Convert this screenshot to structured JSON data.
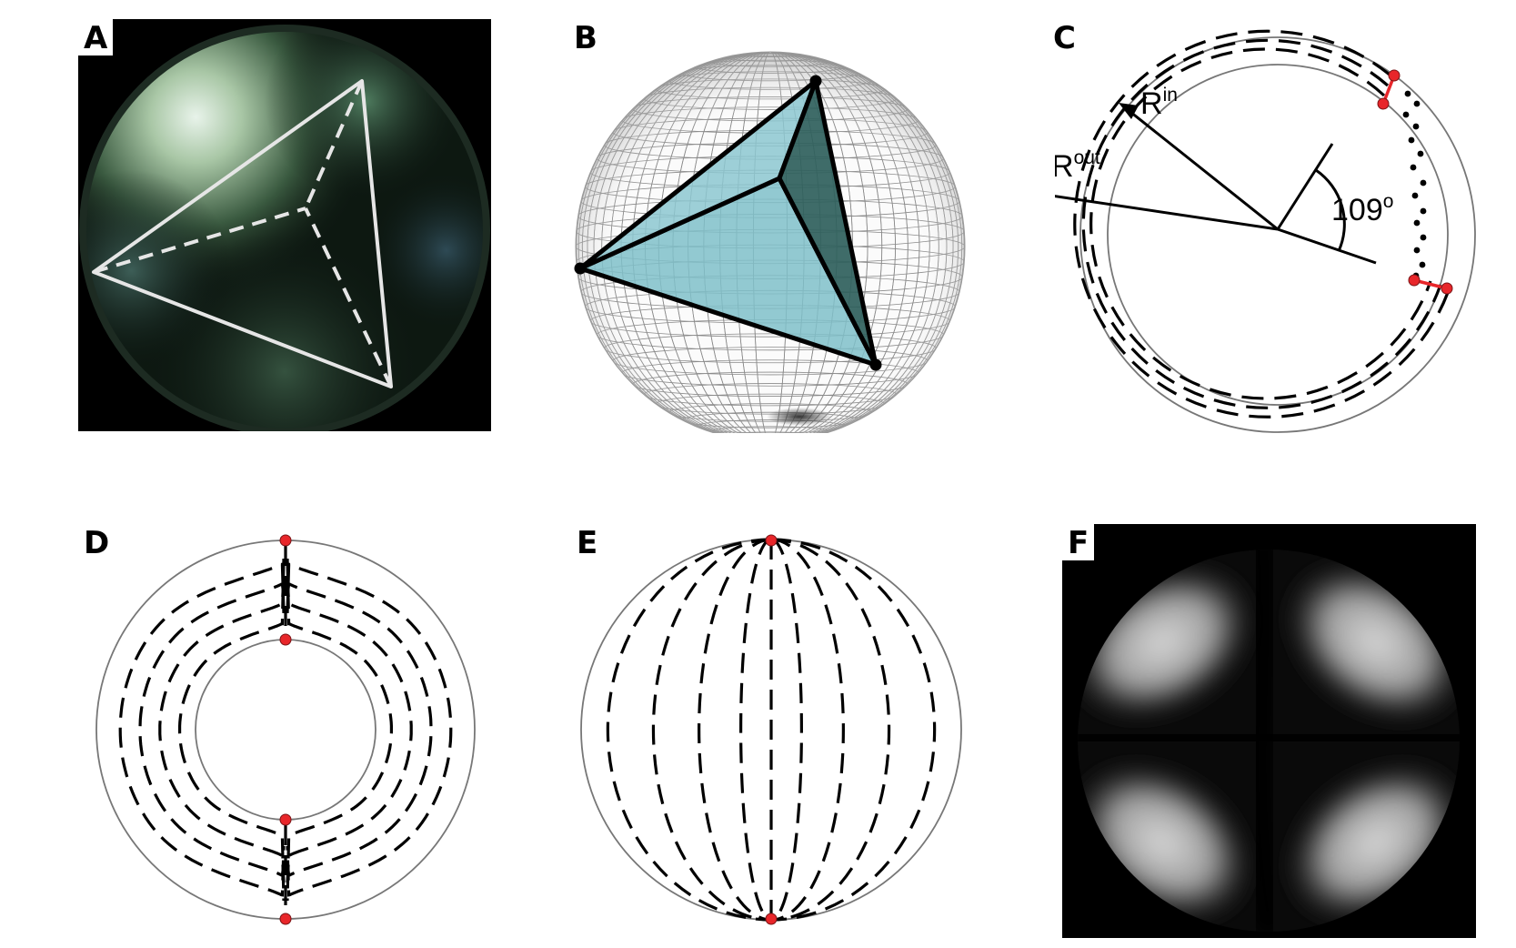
{
  "panels": {
    "a": {
      "label": "A"
    },
    "b": {
      "label": "B"
    },
    "c": {
      "label": "C",
      "r_out": "R",
      "r_out_sup": "out",
      "r_in": "R",
      "r_in_sup": "in",
      "angle_value": "109",
      "angle_sup": "o"
    },
    "d": {
      "label": "D"
    },
    "e": {
      "label": "E"
    },
    "f": {
      "label": "F"
    }
  },
  "colors": {
    "defect": "#e8262a",
    "tetra_face": "#7fbfc9",
    "tetra_dark": "#2f5f5c",
    "shell_line": "#777777"
  }
}
